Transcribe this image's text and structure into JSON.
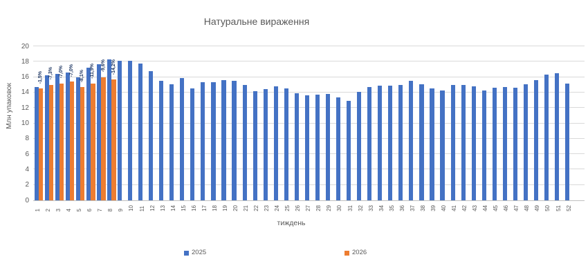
{
  "title": "Натуральне вираження",
  "chart_data": {
    "type": "bar",
    "title": "Натуральне вираження",
    "xlabel": "тиждень",
    "ylabel": "Млн упаковок",
    "ylim": [
      0,
      20
    ],
    "yticks": [
      0,
      2,
      4,
      6,
      8,
      10,
      12,
      14,
      16,
      18,
      20
    ],
    "grid": "horizontal",
    "legend_position": "bottom",
    "categories": [
      "1",
      "2",
      "3",
      "4",
      "5",
      "6",
      "7",
      "8",
      "9",
      "10",
      "11",
      "12",
      "13",
      "14",
      "15",
      "16",
      "17",
      "18",
      "19",
      "20",
      "21",
      "22",
      "23",
      "24",
      "25",
      "26",
      "27",
      "28",
      "29",
      "30",
      "31",
      "32",
      "33",
      "34",
      "35",
      "36",
      "37",
      "38",
      "39",
      "40",
      "41",
      "42",
      "43",
      "44",
      "45",
      "46",
      "47",
      "48",
      "49",
      "50",
      "51",
      "52"
    ],
    "series": [
      {
        "name": "2025",
        "color": "#4472C4",
        "values": [
          14.7,
          16.2,
          16.4,
          16.6,
          16.0,
          17.2,
          17.7,
          18.3,
          18.1,
          18.1,
          17.8,
          16.8,
          15.5,
          15.1,
          15.9,
          14.5,
          15.3,
          15.3,
          15.6,
          15.5,
          15.0,
          14.2,
          14.4,
          14.8,
          14.5,
          13.9,
          13.6,
          13.7,
          13.8,
          13.4,
          12.9,
          14.1,
          14.7,
          14.9,
          14.9,
          15.0,
          15.5,
          15.1,
          14.5,
          14.3,
          15.0,
          15.0,
          14.8,
          14.3,
          14.6,
          14.7,
          14.6,
          15.1,
          15.6,
          16.3,
          16.5,
          15.2
        ]
      },
      {
        "name": "2026",
        "color": "#ED7D31",
        "values": [
          14.5,
          15.0,
          15.2,
          15.4,
          14.7,
          15.2,
          16.0,
          15.7,
          null,
          null,
          null,
          null,
          null,
          null,
          null,
          null,
          null,
          null,
          null,
          null,
          null,
          null,
          null,
          null,
          null,
          null,
          null,
          null,
          null,
          null,
          null,
          null,
          null,
          null,
          null,
          null,
          null,
          null,
          null,
          null,
          null,
          null,
          null,
          null,
          null,
          null,
          null,
          null,
          null,
          null,
          null,
          null
        ]
      }
    ],
    "data_labels": {
      "series": "2026",
      "color": "#203864",
      "values": [
        "-1,5%",
        "-7,3%",
        "-7,0%",
        "-7,0%",
        "-8,1%",
        "-11,9%",
        "-9,6%",
        "-14,2%"
      ]
    }
  },
  "legend": {
    "items": [
      {
        "label": "2025",
        "color": "#4472C4"
      },
      {
        "label": "2026",
        "color": "#ED7D31"
      }
    ]
  },
  "style": {
    "gridline_color": "#d9d9d9",
    "axis_line_color": "#bfbfbf",
    "text_color": "#595959"
  }
}
